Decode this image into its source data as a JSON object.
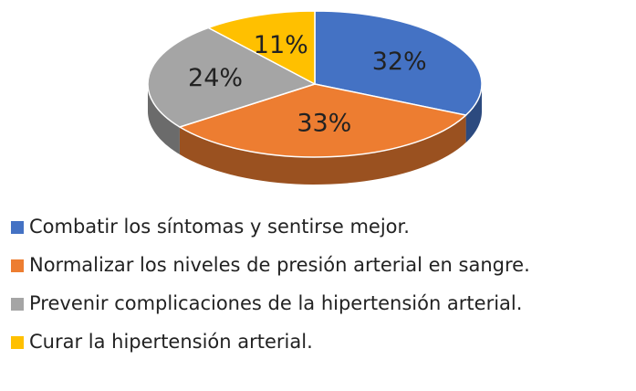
{
  "chart_data": {
    "type": "pie",
    "categories": [
      "Combatir los síntomas y sentirse mejor.",
      "Normalizar los niveles de presión arterial en sangre.",
      "Prevenir complicaciones de la hipertensión arterial.",
      "Curar la hipertensión arterial."
    ],
    "values": [
      32,
      33,
      24,
      11
    ],
    "value_labels": [
      "32%",
      "33%",
      "24%",
      "11%"
    ],
    "colors": [
      "#4472c4",
      "#ed7d31",
      "#a5a5a5",
      "#ffc000"
    ]
  }
}
